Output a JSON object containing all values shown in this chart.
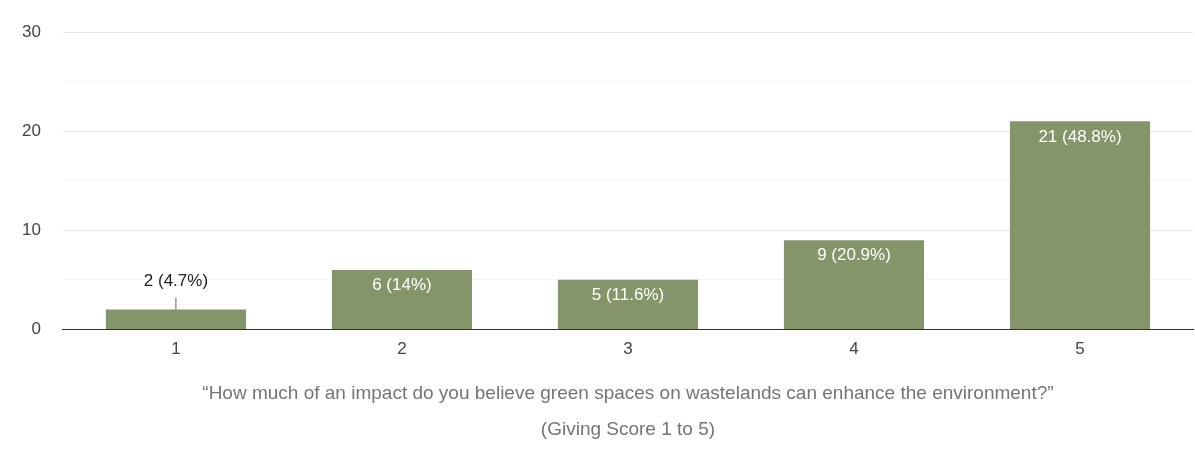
{
  "chart_data": {
    "type": "bar",
    "categories": [
      "1",
      "2",
      "3",
      "4",
      "5"
    ],
    "values": [
      2,
      6,
      5,
      9,
      21
    ],
    "value_labels": [
      "2 (4.7%)",
      "6 (14%)",
      "5 (11.6%)",
      "9 (20.9%)",
      "21 (48.8%)"
    ],
    "color": "#849669",
    "xlabel": "“How much of an impact do you believe green spaces on wastelands can enhance the environment?”\n(Giving Score 1 to 5)",
    "ylim": [
      0,
      30
    ],
    "yticks": [
      0,
      {
        "value": 5,
        "label": null
      },
      10,
      {
        "value": 15,
        "label": null
      },
      20,
      {
        "value": 25,
        "label": null
      },
      30
    ],
    "grid": "y",
    "legend": false
  }
}
